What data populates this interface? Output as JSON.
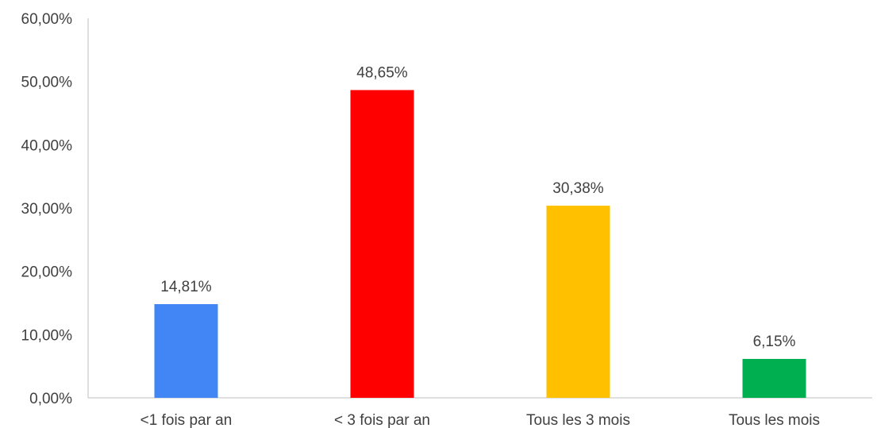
{
  "chart_data": {
    "type": "bar",
    "title": "",
    "xlabel": "",
    "ylabel": "",
    "categories": [
      "<1 fois par an",
      "< 3 fois par an",
      "Tous les 3 mois",
      "Tous les mois"
    ],
    "values": [
      14.81,
      48.65,
      30.38,
      6.15
    ],
    "data_labels": [
      "14,81%",
      "48,65%",
      "30,38%",
      "6,15%"
    ],
    "colors": [
      "#4285F4",
      "#FF0000",
      "#FFC000",
      "#00B050"
    ],
    "ylim": [
      0,
      60
    ],
    "yticks": [
      0,
      10,
      20,
      30,
      40,
      50,
      60
    ],
    "ytick_labels": [
      "0,00%",
      "10,00%",
      "20,00%",
      "30,00%",
      "40,00%",
      "50,00%",
      "60,00%"
    ],
    "grid": false,
    "legend": "none"
  }
}
